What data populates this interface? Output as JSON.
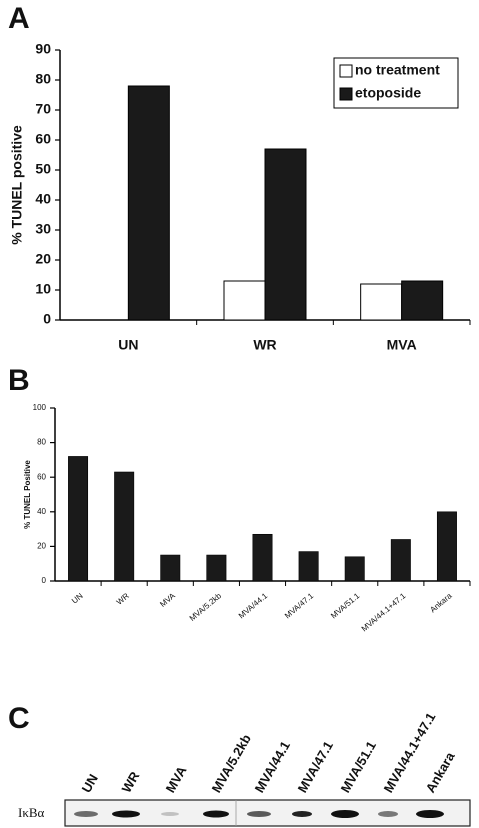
{
  "panels": [
    "A",
    "B",
    "C"
  ],
  "chart_data": [
    {
      "type": "bar",
      "ylabel": "% TUNEL positive",
      "categories": [
        "UN",
        "WR",
        "MVA"
      ],
      "series": [
        {
          "name": "no treatment",
          "color": "#ffffff",
          "values": [
            0,
            13,
            12
          ]
        },
        {
          "name": "etoposide",
          "color": "#1a1a1a",
          "values": [
            78,
            57,
            13
          ]
        }
      ],
      "ylim": [
        0,
        90
      ],
      "yticks": [
        0,
        10,
        20,
        30,
        40,
        50,
        60,
        70,
        80,
        90
      ],
      "legend": "upper right"
    },
    {
      "type": "bar",
      "ylabel": "% TUNEL Positive",
      "categories": [
        "UN",
        "WR",
        "MVA",
        "MVA/5.2kb",
        "MVA/44.1",
        "MVA/47.1",
        "MVA/51.1",
        "MVA/44.1+47.1",
        "Ankara"
      ],
      "values": [
        72,
        63,
        15,
        15,
        27,
        17,
        14,
        24,
        40
      ],
      "color": "#1a1a1a",
      "ylim": [
        0,
        100
      ],
      "yticks": [
        0,
        20,
        40,
        60,
        80,
        100
      ]
    }
  ],
  "blot": {
    "row_label": "IκBα",
    "lanes": [
      "UN",
      "WR",
      "MVA",
      "MVA/5.2kb",
      "MVA/44.1",
      "MVA/47.1",
      "MVA/51.1",
      "MVA/44.1+47.1",
      "Ankara"
    ]
  }
}
